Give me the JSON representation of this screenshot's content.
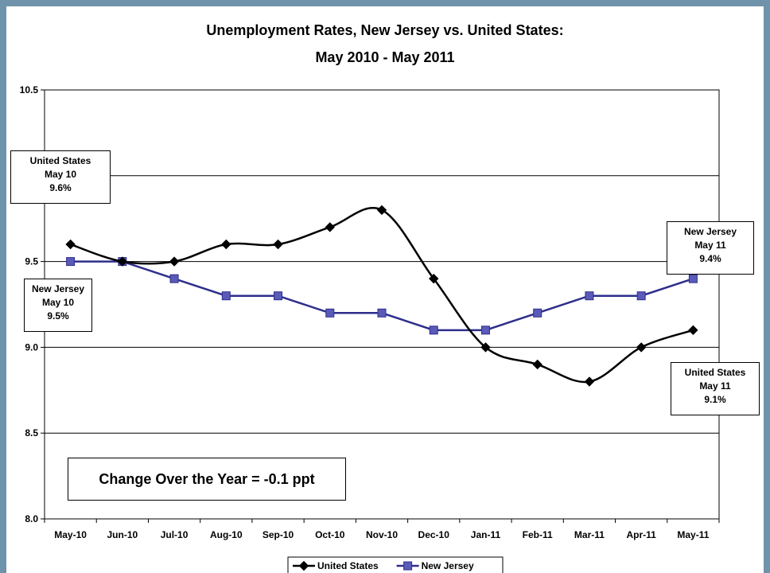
{
  "chart_data": {
    "type": "line",
    "title": "Unemployment Rates, New Jersey vs. United States:",
    "subtitle": "May 2010 - May 2011",
    "xlabel": "",
    "ylabel": "",
    "categories": [
      "May-10",
      "Jun-10",
      "Jul-10",
      "Aug-10",
      "Sep-10",
      "Oct-10",
      "Nov-10",
      "Dec-10",
      "Jan-11",
      "Feb-11",
      "Mar-11",
      "Apr-11",
      "May-11"
    ],
    "ylim": [
      8.0,
      10.5
    ],
    "yticks": [
      "8.0",
      "8.5",
      "9.0",
      "9.5",
      "10.0",
      "10.5"
    ],
    "grid": true,
    "legend_position": "bottom",
    "series": [
      {
        "name": "United States",
        "values": [
          9.6,
          9.5,
          9.5,
          9.6,
          9.6,
          9.7,
          9.8,
          9.4,
          9.0,
          8.9,
          8.8,
          9.0,
          9.1
        ],
        "color": "#000000",
        "marker": "diamond"
      },
      {
        "name": "New Jersey",
        "values": [
          9.5,
          9.5,
          9.4,
          9.3,
          9.3,
          9.2,
          9.2,
          9.1,
          9.1,
          9.2,
          9.3,
          9.3,
          9.4
        ],
        "color": "#2e2e8c",
        "marker": "square"
      }
    ],
    "annotations": {
      "us_start": [
        "United States",
        "May 10",
        "9.6%"
      ],
      "nj_start": [
        "New Jersey",
        "May 10",
        "9.5%"
      ],
      "nj_end": [
        "New Jersey",
        "May 11",
        "9.4%"
      ],
      "us_end": [
        "United States",
        "May 11",
        "9.1%"
      ],
      "change": "Change Over the Year = -0.1 ppt"
    }
  }
}
